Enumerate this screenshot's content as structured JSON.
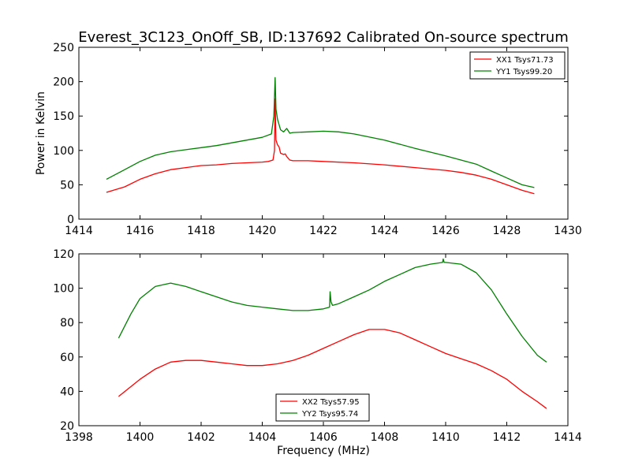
{
  "chart_data": [
    {
      "type": "line",
      "title": "Everest_3C123_OnOff_SB, ID:137692 Calibrated On-source spectrum",
      "xlabel": "",
      "ylabel": "Power in Kelvin",
      "xlim": [
        1414,
        1430
      ],
      "ylim": [
        0,
        250
      ],
      "xticks": [
        1414,
        1416,
        1418,
        1420,
        1422,
        1424,
        1426,
        1428,
        1430
      ],
      "yticks": [
        0,
        50,
        100,
        150,
        200,
        250
      ],
      "grid": false,
      "legend_position": "top-right",
      "series": [
        {
          "name": "XX1 Tsys71.73",
          "color": "#ff0000",
          "x": [
            1414.9,
            1415.5,
            1416.0,
            1416.5,
            1417.0,
            1417.5,
            1418.0,
            1418.5,
            1419.0,
            1419.5,
            1420.0,
            1420.2,
            1420.35,
            1420.4,
            1420.42,
            1420.45,
            1420.5,
            1420.55,
            1420.6,
            1420.7,
            1420.75,
            1420.8,
            1420.9,
            1421.0,
            1421.5,
            1422.0,
            1423.0,
            1424.0,
            1425.0,
            1426.0,
            1426.5,
            1427.0,
            1427.5,
            1428.0,
            1428.5,
            1428.9
          ],
          "y": [
            39,
            47,
            58,
            66,
            72,
            75,
            78,
            79,
            81,
            82,
            83,
            84,
            86,
            100,
            175,
            115,
            108,
            105,
            96,
            94,
            95,
            91,
            86,
            85,
            85,
            84,
            82,
            79,
            75,
            71,
            68,
            64,
            58,
            50,
            42,
            37
          ]
        },
        {
          "name": "YY1 Tsys99.20",
          "color": "#008000",
          "x": [
            1414.9,
            1415.5,
            1416.0,
            1416.5,
            1417.0,
            1417.5,
            1418.0,
            1418.5,
            1419.0,
            1419.5,
            1420.0,
            1420.3,
            1420.38,
            1420.42,
            1420.45,
            1420.5,
            1420.6,
            1420.7,
            1420.8,
            1420.9,
            1421.0,
            1421.5,
            1422.0,
            1422.5,
            1423.0,
            1424.0,
            1425.0,
            1426.0,
            1427.0,
            1427.5,
            1428.0,
            1428.5,
            1428.9
          ],
          "y": [
            58,
            72,
            84,
            93,
            98,
            101,
            104,
            107,
            111,
            115,
            119,
            124,
            150,
            206,
            160,
            145,
            130,
            127,
            132,
            125,
            126,
            127,
            128,
            127,
            124,
            115,
            103,
            92,
            80,
            70,
            60,
            50,
            46
          ]
        }
      ]
    },
    {
      "type": "line",
      "title": "",
      "xlabel": "Frequency (MHz)",
      "ylabel": "",
      "xlim": [
        1398,
        1414
      ],
      "ylim": [
        20,
        120
      ],
      "xticks": [
        1398,
        1400,
        1402,
        1404,
        1406,
        1408,
        1410,
        1412,
        1414
      ],
      "yticks": [
        20,
        40,
        60,
        80,
        100,
        120
      ],
      "grid": false,
      "legend_position": "bottom-center",
      "series": [
        {
          "name": "XX2 Tsys57.95",
          "color": "#ff0000",
          "x": [
            1399.3,
            1400.0,
            1400.5,
            1401.0,
            1401.5,
            1402.0,
            1402.5,
            1403.0,
            1403.5,
            1404.0,
            1404.5,
            1405.0,
            1405.5,
            1406.0,
            1406.5,
            1407.0,
            1407.5,
            1408.0,
            1408.5,
            1409.0,
            1409.5,
            1410.0,
            1410.5,
            1411.0,
            1411.5,
            1412.0,
            1412.5,
            1413.0,
            1413.3
          ],
          "y": [
            37,
            47,
            53,
            57,
            58,
            58,
            57,
            56,
            55,
            55,
            56,
            58,
            61,
            65,
            69,
            73,
            76,
            76,
            74,
            70,
            66,
            62,
            59,
            56,
            52,
            47,
            40,
            34,
            30
          ]
        },
        {
          "name": "YY2 Tsys95.74",
          "color": "#008000",
          "x": [
            1399.3,
            1399.7,
            1400.0,
            1400.5,
            1401.0,
            1401.5,
            1402.0,
            1402.5,
            1403.0,
            1403.5,
            1404.0,
            1404.5,
            1405.0,
            1405.5,
            1406.0,
            1406.2,
            1406.22,
            1406.25,
            1406.3,
            1406.5,
            1407.0,
            1407.5,
            1408.0,
            1408.5,
            1409.0,
            1409.5,
            1409.9,
            1409.92,
            1409.95,
            1410.0,
            1410.5,
            1411.0,
            1411.5,
            1412.0,
            1412.5,
            1413.0,
            1413.3
          ],
          "y": [
            71,
            85,
            94,
            101,
            103,
            101,
            98,
            95,
            92,
            90,
            89,
            88,
            87,
            87,
            88,
            89,
            98,
            92,
            90,
            91,
            95,
            99,
            104,
            108,
            112,
            114,
            115,
            117,
            115,
            115,
            114,
            109,
            99,
            85,
            72,
            61,
            57
          ]
        }
      ]
    }
  ]
}
